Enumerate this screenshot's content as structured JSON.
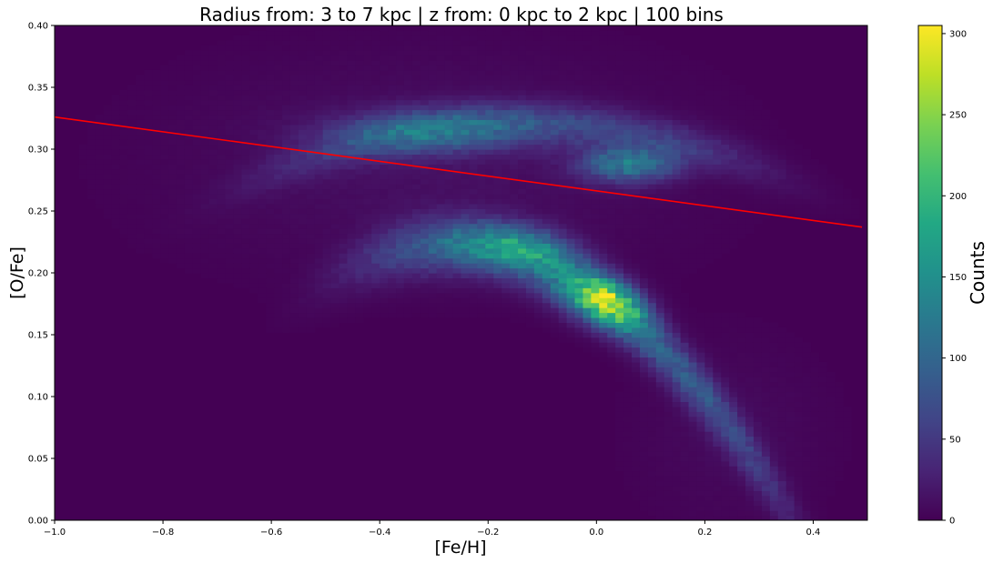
{
  "chart_data": {
    "type": "heatmap",
    "title": "Radius from: 3 to 7 kpc | z from: 0 kpc to 2 kpc | 100 bins",
    "xlabel": "[Fe/H]",
    "ylabel": "[O/Fe]",
    "xlim": [
      -1.0,
      0.5
    ],
    "ylim": [
      0.0,
      0.4
    ],
    "x_ticks": [
      -1.0,
      -0.8,
      -0.6,
      -0.4,
      -0.2,
      0.0,
      0.2,
      0.4
    ],
    "x_tick_labels": [
      "−1.0",
      "−0.8",
      "−0.6",
      "−0.4",
      "−0.2",
      "0.0",
      "0.2",
      "0.4"
    ],
    "y_ticks": [
      0.0,
      0.05,
      0.1,
      0.15,
      0.2,
      0.25,
      0.3,
      0.35,
      0.4
    ],
    "y_tick_labels": [
      "0.00",
      "0.05",
      "0.10",
      "0.15",
      "0.20",
      "0.25",
      "0.30",
      "0.35",
      "0.40"
    ],
    "bins": 100,
    "colormap": "viridis",
    "colorbar": {
      "label": "Counts",
      "range": [
        0,
        305
      ],
      "ticks": [
        0,
        50,
        100,
        150,
        200,
        250,
        300
      ],
      "tick_labels": [
        "0",
        "50",
        "100",
        "150",
        "200",
        "250",
        "300"
      ]
    },
    "density_features": [
      {
        "name": "high-alpha sequence",
        "feh_range": [
          -0.7,
          0.15
        ],
        "ofe_center": 0.31,
        "peak_counts": 160,
        "peak_location": [
          0.07,
          0.29
        ]
      },
      {
        "name": "low-alpha sequence",
        "feh_range": [
          -0.5,
          0.35
        ],
        "ofe_range": [
          0.07,
          0.26
        ],
        "peak_counts": 305,
        "peak_location": [
          0.03,
          0.175
        ]
      }
    ],
    "fit_line": {
      "color": "#ff0000",
      "x": [
        -1.0,
        0.49
      ],
      "y": [
        0.326,
        0.237
      ]
    }
  }
}
